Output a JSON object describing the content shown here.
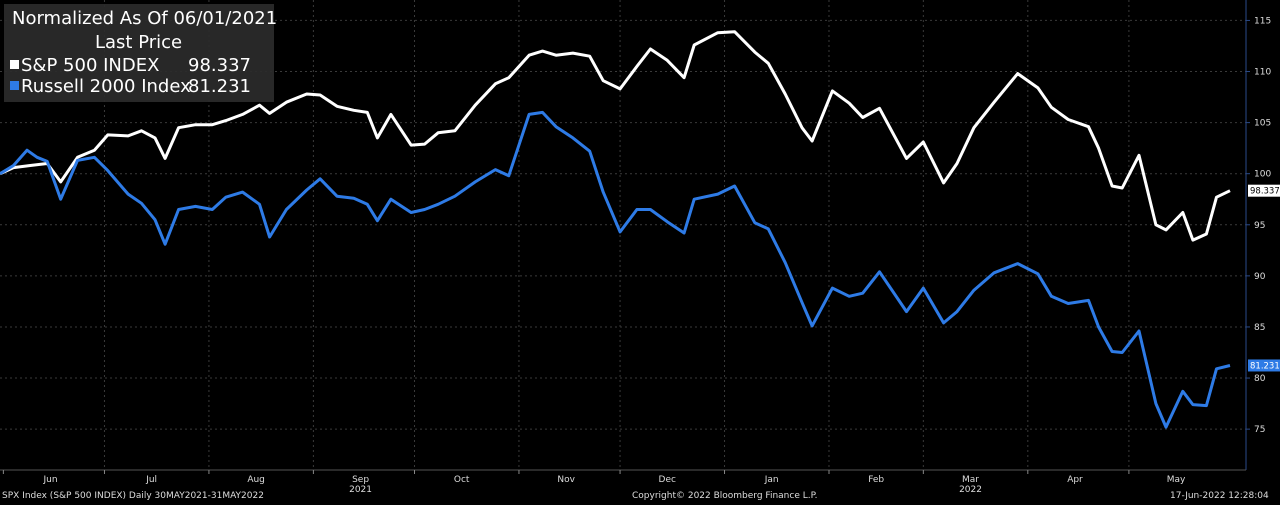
{
  "chart_data": {
    "type": "line",
    "title": "Normalized As Of 06/01/2021",
    "subtitle": "Last Price",
    "x_tick_labels": [
      "Jun",
      "Jul",
      "Aug",
      "Sep",
      "Oct",
      "Nov",
      "Dec",
      "Jan",
      "Feb",
      "Mar",
      "Apr",
      "May"
    ],
    "year_labels": [
      {
        "label": "2021",
        "month": "Sep"
      },
      {
        "label": "2022",
        "month": "Mar"
      }
    ],
    "ylim": [
      71,
      117
    ],
    "y_ticks": [
      75,
      80,
      85,
      90,
      95,
      100,
      105,
      110,
      115
    ],
    "x_start": "2021-05-31",
    "x_end": "2022-05-31",
    "series": [
      {
        "name": "S&P 500 INDEX",
        "last_value": "98.337",
        "color": "#ffffff",
        "points": [
          [
            "2021-05-31",
            100.0
          ],
          [
            "2021-06-04",
            100.6
          ],
          [
            "2021-06-09",
            100.8
          ],
          [
            "2021-06-14",
            101.0
          ],
          [
            "2021-06-18",
            99.2
          ],
          [
            "2021-06-23",
            101.6
          ],
          [
            "2021-06-28",
            102.3
          ],
          [
            "2021-07-02",
            103.8
          ],
          [
            "2021-07-08",
            103.7
          ],
          [
            "2021-07-12",
            104.2
          ],
          [
            "2021-07-16",
            103.5
          ],
          [
            "2021-07-19",
            101.5
          ],
          [
            "2021-07-23",
            104.5
          ],
          [
            "2021-07-28",
            104.8
          ],
          [
            "2021-08-02",
            104.8
          ],
          [
            "2021-08-06",
            105.2
          ],
          [
            "2021-08-11",
            105.8
          ],
          [
            "2021-08-16",
            106.7
          ],
          [
            "2021-08-19",
            105.9
          ],
          [
            "2021-08-24",
            107.0
          ],
          [
            "2021-08-30",
            107.8
          ],
          [
            "2021-09-03",
            107.7
          ],
          [
            "2021-09-08",
            106.6
          ],
          [
            "2021-09-13",
            106.2
          ],
          [
            "2021-09-17",
            106.0
          ],
          [
            "2021-09-20",
            103.5
          ],
          [
            "2021-09-24",
            105.8
          ],
          [
            "2021-09-30",
            102.8
          ],
          [
            "2021-10-04",
            102.9
          ],
          [
            "2021-10-08",
            104.0
          ],
          [
            "2021-10-13",
            104.2
          ],
          [
            "2021-10-19",
            106.7
          ],
          [
            "2021-10-25",
            108.8
          ],
          [
            "2021-10-29",
            109.4
          ],
          [
            "2021-11-04",
            111.6
          ],
          [
            "2021-11-08",
            112.0
          ],
          [
            "2021-11-12",
            111.6
          ],
          [
            "2021-11-17",
            111.8
          ],
          [
            "2021-11-22",
            111.5
          ],
          [
            "2021-11-26",
            109.1
          ],
          [
            "2021-12-01",
            108.3
          ],
          [
            "2021-12-06",
            110.5
          ],
          [
            "2021-12-10",
            112.2
          ],
          [
            "2021-12-15",
            111.1
          ],
          [
            "2021-12-20",
            109.4
          ],
          [
            "2021-12-23",
            112.6
          ],
          [
            "2021-12-30",
            113.8
          ],
          [
            "2022-01-04",
            113.9
          ],
          [
            "2022-01-10",
            111.9
          ],
          [
            "2022-01-14",
            110.8
          ],
          [
            "2022-01-19",
            107.8
          ],
          [
            "2022-01-24",
            104.5
          ],
          [
            "2022-01-27",
            103.2
          ],
          [
            "2022-02-02",
            108.1
          ],
          [
            "2022-02-07",
            106.9
          ],
          [
            "2022-02-11",
            105.5
          ],
          [
            "2022-02-16",
            106.4
          ],
          [
            "2022-02-24",
            101.5
          ],
          [
            "2022-03-01",
            103.1
          ],
          [
            "2022-03-07",
            99.1
          ],
          [
            "2022-03-11",
            101.0
          ],
          [
            "2022-03-16",
            104.5
          ],
          [
            "2022-03-22",
            107.0
          ],
          [
            "2022-03-29",
            109.8
          ],
          [
            "2022-04-04",
            108.4
          ],
          [
            "2022-04-08",
            106.5
          ],
          [
            "2022-04-13",
            105.3
          ],
          [
            "2022-04-19",
            104.6
          ],
          [
            "2022-04-22",
            102.5
          ],
          [
            "2022-04-26",
            98.8
          ],
          [
            "2022-04-29",
            98.6
          ],
          [
            "2022-05-04",
            101.8
          ],
          [
            "2022-05-09",
            95.0
          ],
          [
            "2022-05-12",
            94.5
          ],
          [
            "2022-05-17",
            96.2
          ],
          [
            "2022-05-20",
            93.5
          ],
          [
            "2022-05-24",
            94.1
          ],
          [
            "2022-05-27",
            97.7
          ],
          [
            "2022-05-31",
            98.337
          ]
        ]
      },
      {
        "name": "Russell 2000 Index",
        "last_value": "81.231",
        "color": "#2e7be6",
        "points": [
          [
            "2021-05-31",
            100.0
          ],
          [
            "2021-06-04",
            100.8
          ],
          [
            "2021-06-08",
            102.3
          ],
          [
            "2021-06-11",
            101.6
          ],
          [
            "2021-06-14",
            101.2
          ],
          [
            "2021-06-18",
            97.5
          ],
          [
            "2021-06-23",
            101.3
          ],
          [
            "2021-06-28",
            101.6
          ],
          [
            "2021-07-02",
            100.3
          ],
          [
            "2021-07-08",
            98.0
          ],
          [
            "2021-07-12",
            97.1
          ],
          [
            "2021-07-16",
            95.5
          ],
          [
            "2021-07-19",
            93.1
          ],
          [
            "2021-07-23",
            96.5
          ],
          [
            "2021-07-28",
            96.8
          ],
          [
            "2021-08-02",
            96.5
          ],
          [
            "2021-08-06",
            97.7
          ],
          [
            "2021-08-11",
            98.2
          ],
          [
            "2021-08-16",
            97.0
          ],
          [
            "2021-08-19",
            93.8
          ],
          [
            "2021-08-24",
            96.5
          ],
          [
            "2021-08-30",
            98.4
          ],
          [
            "2021-09-03",
            99.5
          ],
          [
            "2021-09-08",
            97.8
          ],
          [
            "2021-09-13",
            97.6
          ],
          [
            "2021-09-17",
            97.0
          ],
          [
            "2021-09-20",
            95.4
          ],
          [
            "2021-09-24",
            97.5
          ],
          [
            "2021-09-30",
            96.2
          ],
          [
            "2021-10-04",
            96.5
          ],
          [
            "2021-10-08",
            97.0
          ],
          [
            "2021-10-13",
            97.8
          ],
          [
            "2021-10-19",
            99.2
          ],
          [
            "2021-10-25",
            100.4
          ],
          [
            "2021-10-29",
            99.8
          ],
          [
            "2021-11-04",
            105.8
          ],
          [
            "2021-11-08",
            106.0
          ],
          [
            "2021-11-12",
            104.6
          ],
          [
            "2021-11-17",
            103.5
          ],
          [
            "2021-11-22",
            102.2
          ],
          [
            "2021-11-26",
            98.2
          ],
          [
            "2021-12-01",
            94.3
          ],
          [
            "2021-12-06",
            96.5
          ],
          [
            "2021-12-10",
            96.5
          ],
          [
            "2021-12-15",
            95.3
          ],
          [
            "2021-12-20",
            94.2
          ],
          [
            "2021-12-23",
            97.5
          ],
          [
            "2021-12-30",
            98.0
          ],
          [
            "2022-01-04",
            98.8
          ],
          [
            "2022-01-10",
            95.2
          ],
          [
            "2022-01-14",
            94.6
          ],
          [
            "2022-01-19",
            91.3
          ],
          [
            "2022-01-24",
            87.4
          ],
          [
            "2022-01-27",
            85.1
          ],
          [
            "2022-02-02",
            88.8
          ],
          [
            "2022-02-07",
            88.0
          ],
          [
            "2022-02-11",
            88.3
          ],
          [
            "2022-02-16",
            90.4
          ],
          [
            "2022-02-24",
            86.5
          ],
          [
            "2022-03-01",
            88.8
          ],
          [
            "2022-03-07",
            85.4
          ],
          [
            "2022-03-11",
            86.5
          ],
          [
            "2022-03-16",
            88.6
          ],
          [
            "2022-03-22",
            90.3
          ],
          [
            "2022-03-29",
            91.2
          ],
          [
            "2022-04-04",
            90.2
          ],
          [
            "2022-04-08",
            88.0
          ],
          [
            "2022-04-13",
            87.3
          ],
          [
            "2022-04-19",
            87.6
          ],
          [
            "2022-04-22",
            85.0
          ],
          [
            "2022-04-26",
            82.6
          ],
          [
            "2022-04-29",
            82.5
          ],
          [
            "2022-05-04",
            84.6
          ],
          [
            "2022-05-09",
            77.5
          ],
          [
            "2022-05-12",
            75.2
          ],
          [
            "2022-05-17",
            78.7
          ],
          [
            "2022-05-20",
            77.4
          ],
          [
            "2022-05-24",
            77.3
          ],
          [
            "2022-05-27",
            80.9
          ],
          [
            "2022-05-31",
            81.231
          ]
        ]
      }
    ]
  },
  "footer": {
    "left": "SPX Index (S&P 500 INDEX)  Daily 30MAY2021-31MAY2022",
    "center": "Copyright© 2022 Bloomberg Finance L.P.",
    "right": "17-Jun-2022 12:28:04"
  }
}
